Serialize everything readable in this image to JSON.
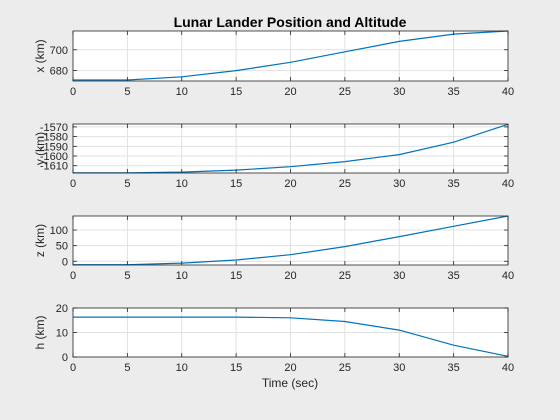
{
  "figure": {
    "title": "Lunar Lander Position and Altitude",
    "xlabel": "Time (sec)",
    "line_color": "#0072BD",
    "axes_background": "#ffffff",
    "grid_color": "#e0e0e0",
    "axis_color": "#262626"
  },
  "chart_data": [
    {
      "type": "line",
      "title": "Lunar Lander Position and Altitude",
      "xlabel": "",
      "ylabel": "x (km)",
      "xlim": [
        0,
        40
      ],
      "ylim": [
        670,
        718
      ],
      "grid": true,
      "xticks": [
        0,
        5,
        10,
        15,
        20,
        25,
        30,
        35,
        40
      ],
      "yticks": [
        680,
        700
      ],
      "yticklabels": [
        "680",
        "700"
      ],
      "series": [
        {
          "x": [
            0,
            5,
            10,
            15,
            20,
            25,
            30,
            35,
            40
          ],
          "y": [
            671,
            671,
            674,
            680,
            688,
            698,
            708,
            715,
            718
          ]
        }
      ]
    },
    {
      "type": "line",
      "xlabel": "",
      "ylabel": "y (km)",
      "xlim": [
        0,
        40
      ],
      "ylim": [
        -1617.5,
        -1567
      ],
      "grid": true,
      "xticks": [
        0,
        5,
        10,
        15,
        20,
        25,
        30,
        35,
        40
      ],
      "yticks": [
        -1610,
        -1600,
        -1590,
        -1580,
        -1570
      ],
      "yticklabels": [
        "-1610",
        "-1600",
        "-1590",
        "-1580",
        "-1570"
      ],
      "series": [
        {
          "x": [
            0,
            5,
            10,
            15,
            20,
            25,
            30,
            35,
            40
          ],
          "y": [
            -1617.3,
            -1617.3,
            -1616.6,
            -1614.5,
            -1611.0,
            -1605.8,
            -1598.5,
            -1585.8,
            -1567.3
          ]
        }
      ]
    },
    {
      "type": "line",
      "xlabel": "",
      "ylabel": "z (km)",
      "xlim": [
        0,
        40
      ],
      "ylim": [
        -12,
        145
      ],
      "grid": true,
      "xticks": [
        0,
        5,
        10,
        15,
        20,
        25,
        30,
        35,
        40
      ],
      "yticks": [
        0,
        50,
        100
      ],
      "yticklabels": [
        "0",
        "50",
        "100"
      ],
      "series": [
        {
          "x": [
            0,
            5,
            10,
            15,
            20,
            25,
            30,
            35,
            40
          ],
          "y": [
            -11,
            -11,
            -6,
            4,
            21,
            47,
            79,
            112,
            145
          ]
        }
      ]
    },
    {
      "type": "line",
      "xlabel": "Time (sec)",
      "ylabel": "h (km)",
      "xlim": [
        0,
        40
      ],
      "ylim": [
        0,
        20
      ],
      "grid": true,
      "xticks": [
        0,
        5,
        10,
        15,
        20,
        25,
        30,
        35,
        40
      ],
      "yticks": [
        0,
        10,
        20
      ],
      "yticklabels": [
        "0",
        "10",
        "20"
      ],
      "series": [
        {
          "x": [
            0,
            5,
            10,
            15,
            20,
            25,
            30,
            35,
            40
          ],
          "y": [
            16.3,
            16.3,
            16.3,
            16.3,
            16.0,
            14.5,
            11.0,
            4.8,
            0.3
          ]
        }
      ]
    }
  ]
}
